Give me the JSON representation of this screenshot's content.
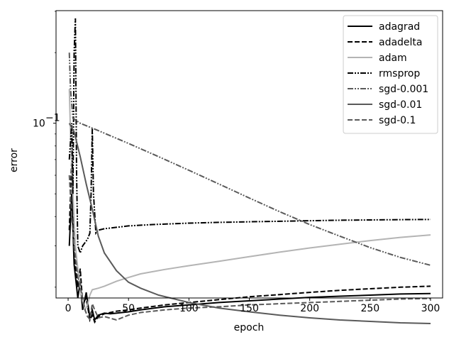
{
  "chart_data": {
    "type": "line",
    "xlabel": "epoch",
    "ylabel": "error",
    "xlim": [
      -10,
      310
    ],
    "ylim_log10": [
      -1.745,
      -0.52
    ],
    "y_scale": "log",
    "x_ticks": [
      0,
      50,
      100,
      150,
      200,
      250,
      300
    ],
    "y_major_tick": {
      "value": 0.1,
      "label_base": "10",
      "label_exp": "−1"
    },
    "grid": false,
    "legend_position": "top-right",
    "series": [
      {
        "name": "adagrad",
        "color": "#000000",
        "dash": "",
        "points": [
          [
            1,
            0.03
          ],
          [
            3,
            0.05
          ],
          [
            5,
            0.025
          ],
          [
            8,
            0.018
          ],
          [
            10,
            0.021
          ],
          [
            12,
            0.016
          ],
          [
            15,
            0.019
          ],
          [
            18,
            0.0148
          ],
          [
            20,
            0.016
          ],
          [
            22,
            0.0145
          ],
          [
            25,
            0.0152
          ],
          [
            30,
            0.0155
          ],
          [
            35,
            0.0154
          ],
          [
            40,
            0.0155
          ],
          [
            50,
            0.0157
          ],
          [
            60,
            0.016
          ],
          [
            80,
            0.0165
          ],
          [
            100,
            0.0168
          ],
          [
            125,
            0.0172
          ],
          [
            150,
            0.0175
          ],
          [
            175,
            0.0178
          ],
          [
            200,
            0.0181
          ],
          [
            225,
            0.0183
          ],
          [
            250,
            0.0185
          ],
          [
            275,
            0.0187
          ],
          [
            300,
            0.0188
          ]
        ]
      },
      {
        "name": "adadelta",
        "color": "#000000",
        "dash": "7,3",
        "points": [
          [
            1,
            0.035
          ],
          [
            3,
            0.07
          ],
          [
            5,
            0.028
          ],
          [
            8,
            0.02
          ],
          [
            10,
            0.024
          ],
          [
            12,
            0.017
          ],
          [
            15,
            0.018
          ],
          [
            18,
            0.0145
          ],
          [
            20,
            0.0152
          ],
          [
            22,
            0.0142
          ],
          [
            25,
            0.015
          ],
          [
            30,
            0.0154
          ],
          [
            40,
            0.0158
          ],
          [
            50,
            0.016
          ],
          [
            60,
            0.0163
          ],
          [
            80,
            0.0168
          ],
          [
            100,
            0.0172
          ],
          [
            125,
            0.0177
          ],
          [
            150,
            0.0182
          ],
          [
            175,
            0.0186
          ],
          [
            200,
            0.019
          ],
          [
            225,
            0.0194
          ],
          [
            250,
            0.0197
          ],
          [
            275,
            0.02
          ],
          [
            300,
            0.0202
          ]
        ]
      },
      {
        "name": "adam",
        "color": "#b4b4b4",
        "dash": "",
        "points": [
          [
            1,
            0.14
          ],
          [
            2,
            0.09
          ],
          [
            4,
            0.05
          ],
          [
            6,
            0.03
          ],
          [
            8,
            0.024
          ],
          [
            10,
            0.02
          ],
          [
            12,
            0.0175
          ],
          [
            14,
            0.016
          ],
          [
            16,
            0.0168
          ],
          [
            18,
            0.0185
          ],
          [
            20,
            0.0195
          ],
          [
            25,
            0.0198
          ],
          [
            30,
            0.0202
          ],
          [
            40,
            0.0212
          ],
          [
            50,
            0.022
          ],
          [
            60,
            0.0228
          ],
          [
            80,
            0.0238
          ],
          [
            100,
            0.0247
          ],
          [
            125,
            0.0258
          ],
          [
            150,
            0.027
          ],
          [
            175,
            0.0282
          ],
          [
            200,
            0.0294
          ],
          [
            225,
            0.0305
          ],
          [
            250,
            0.0316
          ],
          [
            275,
            0.0326
          ],
          [
            300,
            0.0334
          ]
        ]
      },
      {
        "name": "rmsprop",
        "color": "#000000",
        "dash": "8,2,2,2,2,2",
        "points": [
          [
            1,
            0.07
          ],
          [
            3,
            0.1
          ],
          [
            4,
            0.05
          ],
          [
            5,
            0.2
          ],
          [
            6,
            0.28
          ],
          [
            7,
            0.06
          ],
          [
            8,
            0.03
          ],
          [
            10,
            0.028
          ],
          [
            12,
            0.03
          ],
          [
            14,
            0.031
          ],
          [
            16,
            0.032
          ],
          [
            18,
            0.034
          ],
          [
            19,
            0.05
          ],
          [
            20,
            0.095
          ],
          [
            21,
            0.05
          ],
          [
            23,
            0.034
          ],
          [
            25,
            0.035
          ],
          [
            30,
            0.0355
          ],
          [
            40,
            0.036
          ],
          [
            50,
            0.0365
          ],
          [
            70,
            0.037
          ],
          [
            100,
            0.0375
          ],
          [
            125,
            0.0378
          ],
          [
            150,
            0.038
          ],
          [
            175,
            0.0382
          ],
          [
            200,
            0.0384
          ],
          [
            225,
            0.0386
          ],
          [
            250,
            0.0387
          ],
          [
            275,
            0.0388
          ],
          [
            300,
            0.0389
          ]
        ]
      },
      {
        "name": "sgd-0.001",
        "color": "#5a5a5a",
        "dash": "8,2,2,2,2,2",
        "points": [
          [
            1,
            0.2
          ],
          [
            2,
            0.14
          ],
          [
            4,
            0.105
          ],
          [
            10,
            0.1
          ],
          [
            25,
            0.093
          ],
          [
            50,
            0.082
          ],
          [
            75,
            0.072
          ],
          [
            100,
            0.063
          ],
          [
            125,
            0.055
          ],
          [
            150,
            0.048
          ],
          [
            175,
            0.042
          ],
          [
            200,
            0.037
          ],
          [
            225,
            0.033
          ],
          [
            250,
            0.0295
          ],
          [
            275,
            0.0268
          ],
          [
            300,
            0.0248
          ]
        ]
      },
      {
        "name": "sgd-0.01",
        "color": "#5a5a5a",
        "dash": "",
        "points": [
          [
            1,
            0.1
          ],
          [
            5,
            0.092
          ],
          [
            10,
            0.072
          ],
          [
            15,
            0.055
          ],
          [
            20,
            0.043
          ],
          [
            25,
            0.033
          ],
          [
            30,
            0.028
          ],
          [
            40,
            0.0235
          ],
          [
            50,
            0.021
          ],
          [
            60,
            0.0198
          ],
          [
            75,
            0.0185
          ],
          [
            100,
            0.0172
          ],
          [
            125,
            0.0163
          ],
          [
            150,
            0.0157
          ],
          [
            175,
            0.0152
          ],
          [
            200,
            0.0148
          ],
          [
            225,
            0.0145
          ],
          [
            250,
            0.0143
          ],
          [
            275,
            0.0141
          ],
          [
            300,
            0.014
          ]
        ]
      },
      {
        "name": "sgd-0.1",
        "color": "#5a5a5a",
        "dash": "7,3",
        "points": [
          [
            1,
            0.06
          ],
          [
            3,
            0.04
          ],
          [
            5,
            0.03
          ],
          [
            8,
            0.022
          ],
          [
            10,
            0.02
          ],
          [
            12,
            0.018
          ],
          [
            14,
            0.016
          ],
          [
            16,
            0.015
          ],
          [
            18,
            0.0146
          ],
          [
            20,
            0.017
          ],
          [
            22,
            0.016
          ],
          [
            25,
            0.0148
          ],
          [
            30,
            0.015
          ],
          [
            40,
            0.0145
          ],
          [
            50,
            0.0152
          ],
          [
            60,
            0.0156
          ],
          [
            80,
            0.016
          ],
          [
            100,
            0.0163
          ],
          [
            125,
            0.0165
          ],
          [
            150,
            0.0168
          ],
          [
            175,
            0.017
          ],
          [
            200,
            0.0172
          ],
          [
            225,
            0.0174
          ],
          [
            250,
            0.0176
          ],
          [
            275,
            0.0178
          ],
          [
            300,
            0.0179
          ]
        ]
      }
    ]
  }
}
